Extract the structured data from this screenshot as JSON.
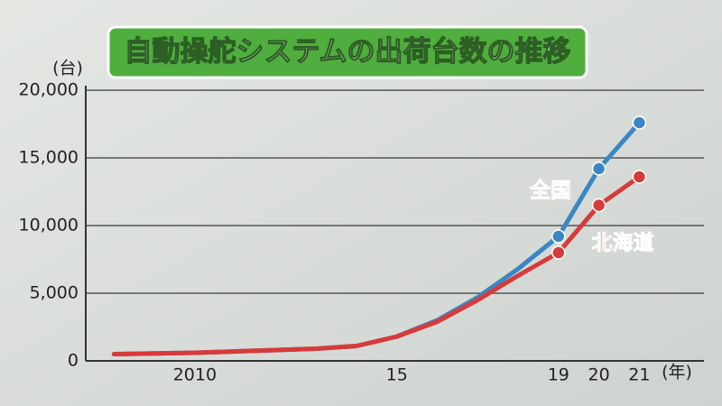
{
  "chart_data": {
    "type": "line",
    "title": "自動操舵システムの出荷台数の推移",
    "y_unit": "(台)",
    "x_unit": "(年)",
    "x": [
      2008,
      2009,
      2010,
      2011,
      2012,
      2013,
      2014,
      2015,
      2016,
      2017,
      2018,
      2019,
      2020,
      2021
    ],
    "series": [
      {
        "name": "全国",
        "color": "#3a87c4",
        "values": [
          500,
          550,
          600,
          700,
          800,
          900,
          1100,
          1800,
          3000,
          4700,
          6800,
          9200,
          14200,
          17600
        ]
      },
      {
        "name": "北海道",
        "color": "#d83a3a",
        "values": [
          500,
          550,
          600,
          700,
          800,
          900,
          1100,
          1800,
          2900,
          4500,
          6300,
          8000,
          11500,
          13600
        ]
      }
    ],
    "marker_start": 2019,
    "xlim": [
      2007.3,
      2022.6
    ],
    "xticks": [
      {
        "value": 2010,
        "label": "2010"
      },
      {
        "value": 2015,
        "label": "15"
      },
      {
        "value": 2019,
        "label": "19"
      },
      {
        "value": 2020,
        "label": "20"
      },
      {
        "value": 2021,
        "label": "21"
      }
    ],
    "ylim": [
      0,
      20000
    ],
    "yticks": [
      0,
      {
        "value": 5000,
        "label": "5,000"
      },
      {
        "value": 10000,
        "label": "10,000"
      },
      {
        "value": 15000,
        "label": "15,000"
      },
      {
        "value": 20000,
        "label": "20,000"
      }
    ],
    "grid": true
  }
}
